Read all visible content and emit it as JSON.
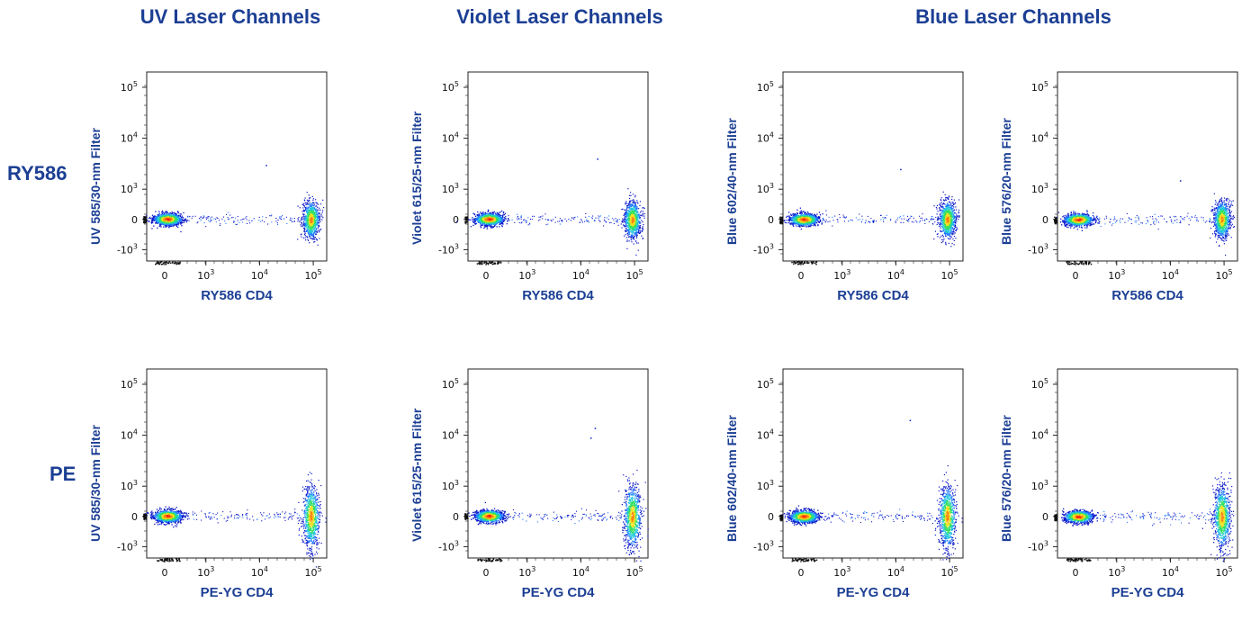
{
  "section_titles": [
    "UV Laser Channels",
    "Violet Laser Channels",
    "Blue Laser Channels"
  ],
  "row_labels": [
    "RY586",
    "PE"
  ],
  "tick_labels": {
    "y": [
      "10",
      "10",
      "10",
      "0",
      "-10"
    ],
    "y_exp": [
      "5",
      "4",
      "3",
      "",
      "3"
    ],
    "x": [
      "0",
      "10",
      "10",
      "10"
    ],
    "x_exp": [
      "",
      "3",
      "4",
      "5"
    ]
  },
  "chart_data": [
    {
      "type": "scatter",
      "xlabel": "RY586 CD4",
      "ylabel": "UV 585/30-nm Filter",
      "x_scale": "biexponential",
      "y_scale": "biexponential",
      "x_ticks": [
        0,
        1000,
        10000,
        100000
      ],
      "y_ticks": [
        100000,
        10000,
        1000,
        0,
        -1000
      ],
      "populations": [
        {
          "x": 60,
          "y": 20,
          "label": "negative"
        },
        {
          "x": 90000,
          "y": 0,
          "label": "positive"
        }
      ],
      "scattered_events": [
        {
          "x": 13000,
          "y": 3000
        }
      ]
    },
    {
      "type": "scatter",
      "xlabel": "RY586 CD4",
      "ylabel": "Violet 615/25-nm Filter",
      "x_scale": "biexponential",
      "y_scale": "biexponential",
      "x_ticks": [
        0,
        1000,
        10000,
        100000
      ],
      "y_ticks": [
        100000,
        10000,
        1000,
        0,
        -1000
      ],
      "populations": [
        {
          "x": 60,
          "y": 20,
          "label": "negative"
        },
        {
          "x": 90000,
          "y": 0,
          "label": "positive"
        }
      ],
      "scattered_events": [
        {
          "x": 20000,
          "y": 4000
        }
      ]
    },
    {
      "type": "scatter",
      "xlabel": "RY586 CD4",
      "ylabel": "Blue 602/40-nm Filter",
      "x_scale": "biexponential",
      "y_scale": "biexponential",
      "x_ticks": [
        0,
        1000,
        10000,
        100000
      ],
      "y_ticks": [
        100000,
        10000,
        1000,
        0,
        -1000
      ],
      "populations": [
        {
          "x": 60,
          "y": 10,
          "label": "negative"
        },
        {
          "x": 90000,
          "y": 10,
          "label": "positive"
        }
      ],
      "scattered_events": [
        {
          "x": 12000,
          "y": 2500
        }
      ]
    },
    {
      "type": "scatter",
      "xlabel": "RY586 CD4",
      "ylabel": "Blue 576/20-nm Filter",
      "x_scale": "biexponential",
      "y_scale": "biexponential",
      "x_ticks": [
        0,
        1000,
        10000,
        100000
      ],
      "y_ticks": [
        100000,
        10000,
        1000,
        0,
        -1000
      ],
      "populations": [
        {
          "x": 60,
          "y": 5,
          "label": "negative"
        },
        {
          "x": 90000,
          "y": 5,
          "label": "positive"
        }
      ],
      "scattered_events": [
        {
          "x": 15000,
          "y": 1500
        }
      ]
    },
    {
      "type": "scatter",
      "xlabel": "PE-YG CD4",
      "ylabel": "UV 585/30-nm Filter",
      "x_scale": "biexponential",
      "y_scale": "biexponential",
      "x_ticks": [
        0,
        1000,
        10000,
        100000
      ],
      "y_ticks": [
        100000,
        10000,
        1000,
        0,
        -1000
      ],
      "populations": [
        {
          "x": 60,
          "y": 20,
          "label": "negative"
        },
        {
          "x": 90000,
          "y": 0,
          "label": "positive"
        }
      ],
      "scattered_events": []
    },
    {
      "type": "scatter",
      "xlabel": "PE-YG CD4",
      "ylabel": "Violet 615/25-nm Filter",
      "x_scale": "biexponential",
      "y_scale": "biexponential",
      "x_ticks": [
        0,
        1000,
        10000,
        100000
      ],
      "y_ticks": [
        100000,
        10000,
        1000,
        0,
        -1000
      ],
      "populations": [
        {
          "x": 60,
          "y": 20,
          "label": "negative"
        },
        {
          "x": 90000,
          "y": 0,
          "label": "positive"
        }
      ],
      "scattered_events": [
        {
          "x": 18000,
          "y": 14000
        },
        {
          "x": 15000,
          "y": 9000
        }
      ]
    },
    {
      "type": "scatter",
      "xlabel": "PE-YG CD4",
      "ylabel": "Blue 602/40-nm Filter",
      "x_scale": "biexponential",
      "y_scale": "biexponential",
      "x_ticks": [
        0,
        1000,
        10000,
        100000
      ],
      "y_ticks": [
        100000,
        10000,
        1000,
        0,
        -1000
      ],
      "populations": [
        {
          "x": 60,
          "y": 10,
          "label": "negative"
        },
        {
          "x": 90000,
          "y": 0,
          "label": "positive"
        }
      ],
      "scattered_events": [
        {
          "x": 18000,
          "y": 20000
        }
      ]
    },
    {
      "type": "scatter",
      "xlabel": "PE-YG CD4",
      "ylabel": "Blue 576/20-nm Filter",
      "x_scale": "biexponential",
      "y_scale": "biexponential",
      "x_ticks": [
        0,
        1000,
        10000,
        100000
      ],
      "y_ticks": [
        100000,
        10000,
        1000,
        0,
        -1000
      ],
      "populations": [
        {
          "x": 60,
          "y": 5,
          "label": "negative"
        },
        {
          "x": 90000,
          "y": 0,
          "label": "positive"
        }
      ],
      "scattered_events": []
    }
  ],
  "colors": {
    "title": "#1c3f94",
    "density": [
      "#0a18c8",
      "#1e78ff",
      "#22c8d8",
      "#32e060",
      "#f0e020",
      "#ff8010",
      "#ff1010"
    ]
  }
}
